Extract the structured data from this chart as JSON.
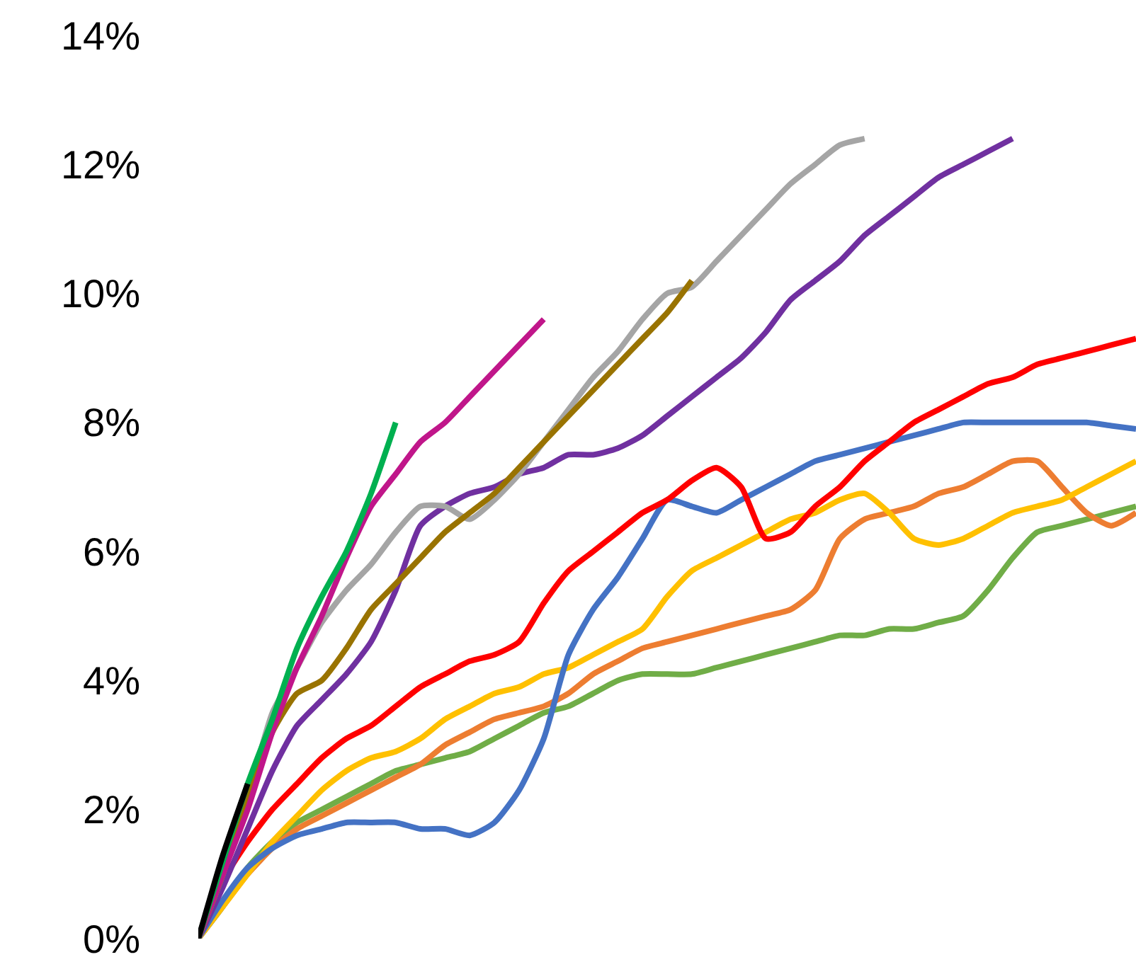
{
  "chart_data": {
    "type": "line",
    "categories": [
      null,
      null,
      null,
      null,
      null,
      null,
      null,
      null,
      null,
      null,
      null,
      null,
      null,
      null,
      null,
      null,
      null,
      null,
      null,
      null,
      null,
      null,
      null,
      null,
      null,
      null,
      null,
      null,
      null,
      null,
      null,
      null,
      null,
      null,
      null,
      null,
      null,
      null,
      null
    ],
    "ylim": [
      0,
      14
    ],
    "yticks": [
      {
        "value": 0,
        "label": "0%"
      },
      {
        "value": 2,
        "label": "2%"
      },
      {
        "value": 4,
        "label": "4%"
      },
      {
        "value": 6,
        "label": "6%"
      },
      {
        "value": 8,
        "label": "8%"
      },
      {
        "value": 10,
        "label": "10%"
      },
      {
        "value": 12,
        "label": "12%"
      },
      {
        "value": 14,
        "label": "14%"
      }
    ],
    "tick_labels": "y",
    "grid": false,
    "marker": "none",
    "line_style": "solid",
    "series": [
      {
        "color": "#70ad47",
        "values": [
          0,
          0.5,
          1.1,
          1.5,
          1.8,
          2.0,
          2.2,
          2.4,
          2.6,
          2.7,
          2.8,
          2.9,
          3.1,
          3.3,
          3.5,
          3.6,
          3.8,
          4.0,
          4.1,
          4.1,
          4.1,
          4.2,
          4.3,
          4.4,
          4.5,
          4.6,
          4.7,
          4.7,
          4.8,
          4.8,
          4.9,
          5.0,
          5.4,
          5.9,
          6.3,
          6.4,
          6.5,
          6.6,
          6.7
        ]
      },
      {
        "color": "#ed7d31",
        "values": [
          0,
          0.5,
          1.0,
          1.4,
          1.7,
          1.9,
          2.1,
          2.3,
          2.5,
          2.7,
          3.0,
          3.2,
          3.4,
          3.5,
          3.6,
          3.8,
          4.1,
          4.3,
          4.5,
          4.6,
          4.7,
          4.8,
          4.9,
          5.0,
          5.1,
          5.4,
          6.2,
          6.5,
          6.6,
          6.7,
          6.9,
          7.0,
          7.2,
          7.4,
          7.4,
          7.0,
          6.6,
          6.4,
          6.6
        ]
      },
      {
        "color": "#ffc000",
        "values": [
          0,
          0.5,
          1.0,
          1.5,
          1.9,
          2.3,
          2.6,
          2.8,
          2.9,
          3.1,
          3.4,
          3.6,
          3.8,
          3.9,
          4.1,
          4.2,
          4.4,
          4.6,
          4.8,
          5.3,
          5.7,
          5.9,
          6.1,
          6.3,
          6.5,
          6.6,
          6.8,
          6.9,
          6.6,
          6.2,
          6.1,
          6.2,
          6.4,
          6.6,
          6.7,
          6.8,
          7.0,
          7.2,
          7.4
        ]
      },
      {
        "color": "#4472c4",
        "values": [
          0,
          0.6,
          1.1,
          1.4,
          1.6,
          1.7,
          1.8,
          1.8,
          1.8,
          1.7,
          1.7,
          1.6,
          1.8,
          2.3,
          3.1,
          4.4,
          5.1,
          5.6,
          6.2,
          6.8,
          6.7,
          6.6,
          6.8,
          7.0,
          7.2,
          7.4,
          7.5,
          7.6,
          7.7,
          7.8,
          7.9,
          8.0,
          8.0,
          8.0,
          8.0,
          8.0,
          8.0,
          7.95,
          7.9
        ]
      },
      {
        "color": "#ff0000",
        "values": [
          0,
          0.9,
          1.5,
          2.0,
          2.4,
          2.8,
          3.1,
          3.3,
          3.6,
          3.9,
          4.1,
          4.3,
          4.4,
          4.6,
          5.2,
          5.7,
          6.0,
          6.3,
          6.6,
          6.8,
          7.1,
          7.3,
          7.0,
          6.2,
          6.3,
          6.7,
          7.0,
          7.4,
          7.7,
          8.0,
          8.2,
          8.4,
          8.6,
          8.7,
          8.9,
          9.0,
          9.1,
          9.2,
          9.3
        ]
      },
      {
        "color": "#7030a0",
        "values": [
          0,
          0.8,
          1.7,
          2.6,
          3.3,
          3.7,
          4.1,
          4.6,
          5.4,
          6.4,
          6.7,
          6.9,
          7.0,
          7.2,
          7.3,
          7.5,
          7.5,
          7.6,
          7.8,
          8.1,
          8.4,
          8.7,
          9.0,
          9.4,
          9.9,
          10.2,
          10.5,
          10.9,
          11.2,
          11.5,
          11.8,
          12.0,
          12.2,
          12.4,
          null,
          null,
          null,
          null,
          null
        ]
      },
      {
        "color": "#a5a5a5",
        "values": [
          0,
          1.0,
          2.2,
          3.5,
          4.2,
          4.9,
          5.4,
          5.8,
          6.3,
          6.7,
          6.7,
          6.5,
          6.8,
          7.2,
          7.7,
          8.2,
          8.7,
          9.1,
          9.6,
          10.0,
          10.1,
          10.5,
          10.9,
          11.3,
          11.7,
          12.0,
          12.3,
          12.4,
          null,
          null,
          null,
          null,
          null,
          null,
          null,
          null,
          null,
          null,
          null
        ]
      },
      {
        "color": "#997300",
        "values": [
          0,
          1.0,
          2.2,
          3.2,
          3.8,
          4.0,
          4.5,
          5.1,
          5.5,
          5.9,
          6.3,
          6.6,
          6.9,
          7.3,
          7.7,
          8.1,
          8.5,
          8.9,
          9.3,
          9.7,
          10.2,
          null,
          null,
          null,
          null,
          null,
          null,
          null,
          null,
          null,
          null,
          null,
          null,
          null,
          null,
          null,
          null,
          null,
          null
        ]
      },
      {
        "color": "#c0168a",
        "values": [
          0,
          1.0,
          2.0,
          3.2,
          4.2,
          5.0,
          5.9,
          6.7,
          7.2,
          7.7,
          8.0,
          8.4,
          8.8,
          9.2,
          9.6,
          null,
          null,
          null,
          null,
          null,
          null,
          null,
          null,
          null,
          null,
          null,
          null,
          null,
          null,
          null,
          null,
          null,
          null,
          null,
          null,
          null,
          null,
          null,
          null
        ]
      },
      {
        "color": "#00b050",
        "values": [
          0,
          1.2,
          2.4,
          3.4,
          4.5,
          5.3,
          6.0,
          6.9,
          8.0,
          null,
          null,
          null,
          null,
          null,
          null,
          null,
          null,
          null,
          null,
          null,
          null,
          null,
          null,
          null,
          null,
          null,
          null,
          null,
          null,
          null,
          null,
          null,
          null,
          null,
          null,
          null,
          null,
          null,
          null
        ]
      },
      {
        "color": "#000000",
        "values": [
          0,
          1.3,
          2.4,
          null,
          null,
          null,
          null,
          null,
          null,
          null,
          null,
          null,
          null,
          null,
          null,
          null,
          null,
          null,
          null,
          null,
          null,
          null,
          null,
          null,
          null,
          null,
          null,
          null,
          null,
          null,
          null,
          null,
          null,
          null,
          null,
          null,
          null,
          null,
          null
        ]
      }
    ]
  }
}
